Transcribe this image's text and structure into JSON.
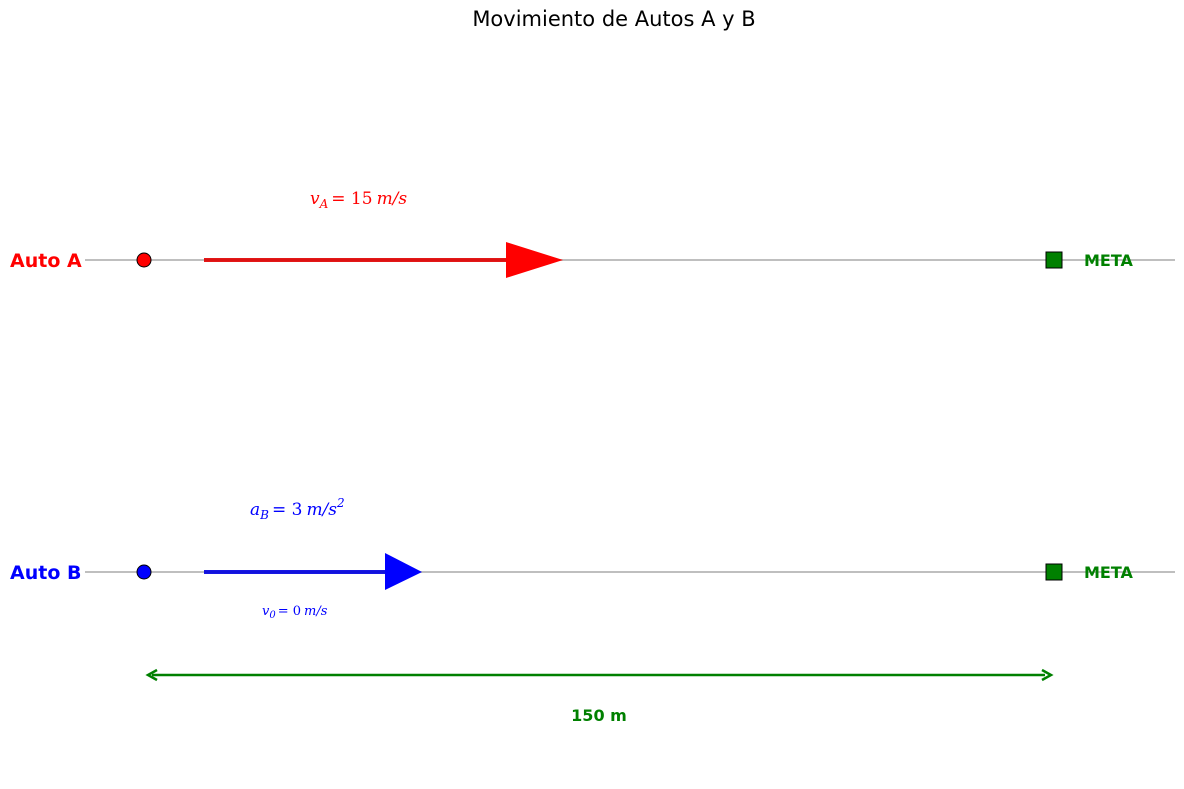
{
  "title": "Movimiento de Autos A y B",
  "colors": {
    "car_a": "#ff0000",
    "car_b": "#0000ff",
    "goal": "#008000",
    "track": "#bfbfbf"
  },
  "car_a": {
    "label": "Auto A",
    "velocity": {
      "symbol": "v",
      "subscript": "A",
      "value": "= 15",
      "unit": "m/s"
    },
    "goal_label": "META"
  },
  "car_b": {
    "label": "Auto B",
    "acceleration": {
      "symbol": "a",
      "subscript": "B",
      "value": "= 3",
      "unit": "m/s",
      "unit_power": "2"
    },
    "initial_velocity": {
      "symbol": "v",
      "subscript": "0",
      "value": "= 0",
      "unit": "m/s"
    },
    "goal_label": "META"
  },
  "distance": {
    "label": "150 m"
  }
}
